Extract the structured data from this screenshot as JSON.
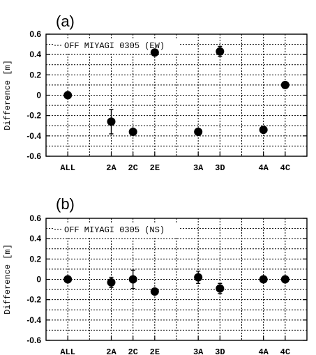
{
  "chart_data": [
    {
      "panel_label": "(a)",
      "type": "scatter",
      "legend": "OFF MIYAGI 0305 (EW)",
      "legend_placement": "top-left",
      "ylabel": "Difference [m]",
      "ylim": [
        -0.6,
        0.6
      ],
      "yticks": [
        "0.6",
        "0.4",
        "0.2",
        "0",
        "-0.2",
        "-0.4",
        "-0.6"
      ],
      "yticks_values": [
        0.6,
        0.4,
        0.2,
        0,
        -0.2,
        -0.4,
        -0.6
      ],
      "grid": true,
      "categories": [
        "ALL",
        "2A",
        "2C",
        "2E",
        "3A",
        "3D",
        "4A",
        "4C"
      ],
      "x_positions": [
        1,
        3,
        4,
        5,
        7,
        8,
        10,
        11
      ],
      "xlim": [
        0,
        12
      ],
      "values": [
        0.0,
        -0.26,
        -0.36,
        0.42,
        -0.36,
        0.43,
        -0.34,
        0.1
      ],
      "errors": [
        0.0,
        0.12,
        0.02,
        0.02,
        0.03,
        0.05,
        0.02,
        0.02
      ]
    },
    {
      "panel_label": "(b)",
      "type": "scatter",
      "legend": "OFF MIYAGI 0305 (NS)",
      "legend_placement": "top-left",
      "ylabel": "Difference [m]",
      "ylim": [
        -0.6,
        0.6
      ],
      "yticks": [
        "0.6",
        "0.4",
        "0.2",
        "0",
        "-0.2",
        "-0.4",
        "-0.6"
      ],
      "yticks_values": [
        0.6,
        0.4,
        0.2,
        0,
        -0.2,
        -0.4,
        -0.6
      ],
      "grid": true,
      "categories": [
        "ALL",
        "2A",
        "2C",
        "2E",
        "3A",
        "3D",
        "4A",
        "4C"
      ],
      "x_positions": [
        1,
        3,
        4,
        5,
        7,
        8,
        10,
        11
      ],
      "xlim": [
        0,
        12
      ],
      "values": [
        0.0,
        -0.03,
        0.0,
        -0.12,
        0.02,
        -0.09,
        0.0,
        0.0
      ],
      "errors": [
        0.0,
        0.05,
        0.09,
        0.03,
        0.06,
        0.05,
        0.01,
        0.01
      ]
    }
  ]
}
